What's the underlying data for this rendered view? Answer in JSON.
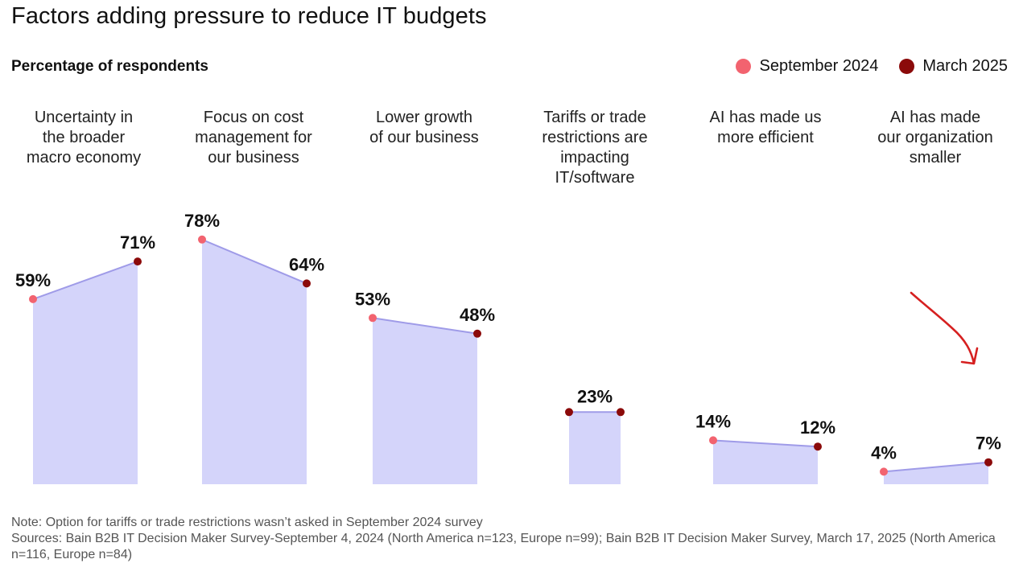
{
  "title": "Factors adding pressure to reduce IT budgets",
  "subtitle": "Percentage of respondents",
  "legend": [
    {
      "label": "September 2024",
      "color": "#f2636f"
    },
    {
      "label": "March 2025",
      "color": "#8b0a0a"
    }
  ],
  "colors": {
    "fill": "#d4d4fa",
    "line": "#9f9be8",
    "sep": "#f2636f",
    "mar": "#8b0a0a"
  },
  "chart_data": {
    "type": "area",
    "title": "Factors adding pressure to reduce IT budgets",
    "ylabel": "Percentage of respondents",
    "ylim": [
      0,
      100
    ],
    "grid": false,
    "legend_position": "top-right",
    "categories": [
      "Uncertainty in\nthe broader\nmacro economy",
      "Focus on cost\nmanagement for\nour business",
      "Lower growth\nof our business",
      "Tariffs or trade\nrestrictions are\nimpacting\nIT/software",
      "AI has made us\nmore efficient",
      "AI has made\nour organization\nsmaller"
    ],
    "series": [
      {
        "name": "September 2024",
        "values": [
          59,
          78,
          53,
          null,
          14,
          4
        ]
      },
      {
        "name": "March 2025",
        "values": [
          71,
          64,
          48,
          23,
          12,
          7
        ]
      }
    ],
    "data_labels": [
      [
        "59%",
        "71%"
      ],
      [
        "78%",
        "64%"
      ],
      [
        "53%",
        "48%"
      ],
      [
        "23%"
      ],
      [
        "14%",
        "12%"
      ],
      [
        "4%",
        "7%"
      ]
    ]
  },
  "footer": {
    "note": "Note: Option for tariffs or trade restrictions wasn’t asked in September 2024 survey",
    "sources": "Sources: Bain B2B IT Decision Maker Survey-September 4, 2024 (North America n=123, Europe n=99); Bain B2B IT Decision Maker Survey, March 17, 2025 (North America n=116, Europe n=84)"
  }
}
